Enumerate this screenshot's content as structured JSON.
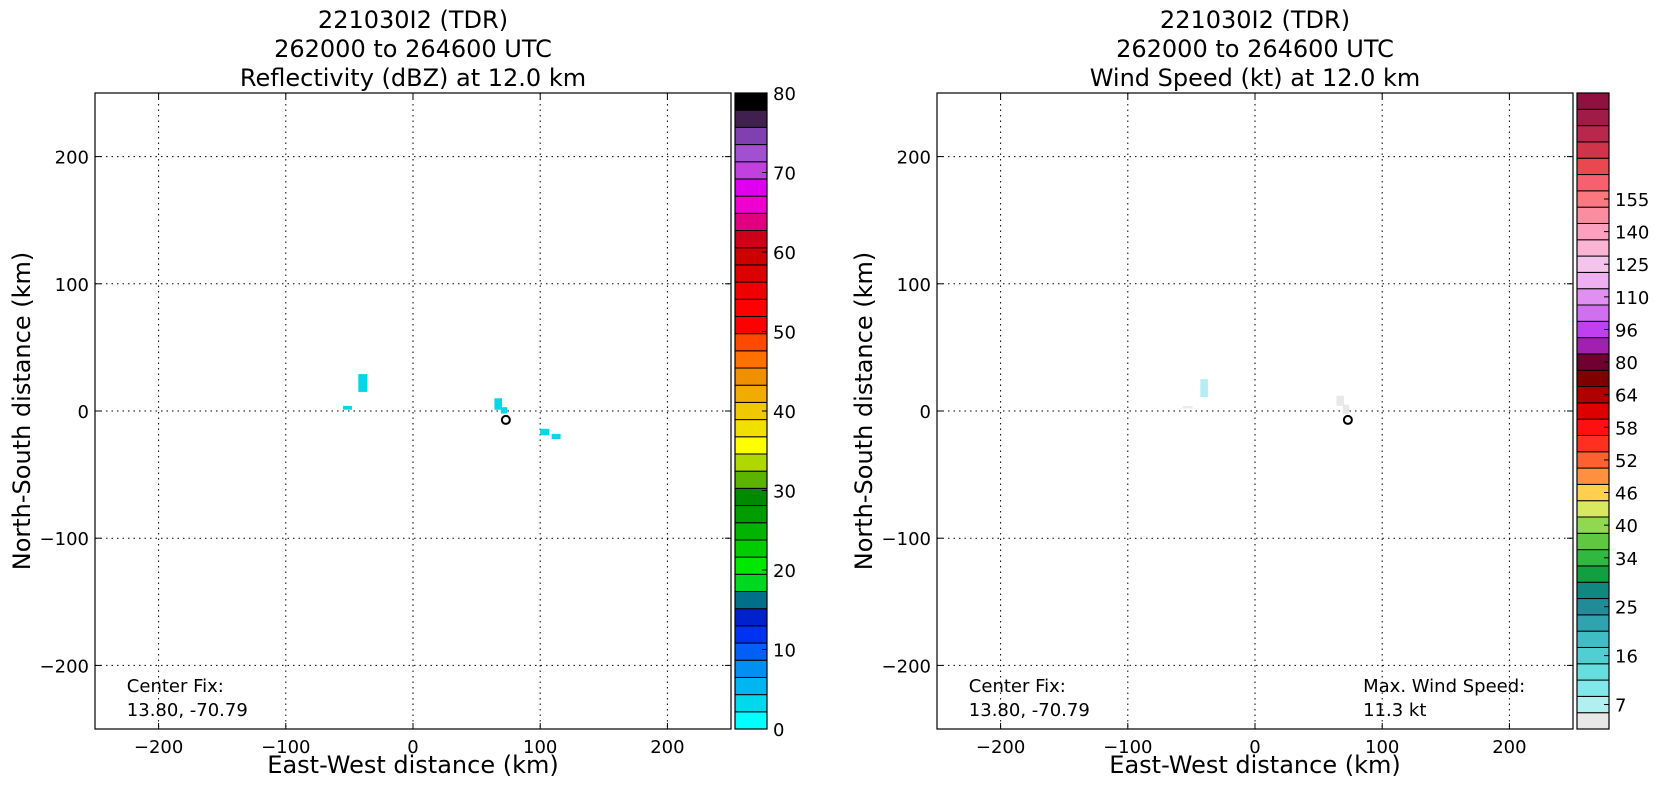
{
  "chart_data": [
    {
      "type": "heatmap",
      "title_lines": [
        "221030I2 (TDR)",
        "262000 to 264600 UTC",
        "Reflectivity (dBZ) at 12.0 km"
      ],
      "xlabel": "East-West distance (km)",
      "ylabel": "North-South distance (km)",
      "xlim": [
        -250,
        250
      ],
      "ylim": [
        -250,
        250
      ],
      "xticks": [
        -200,
        -100,
        0,
        100,
        200
      ],
      "yticks": [
        -200,
        -100,
        0,
        100,
        200
      ],
      "xtick_labels": [
        "−200",
        "−100",
        "0",
        "100",
        "200"
      ],
      "ytick_labels": [
        "−200",
        "−100",
        "0",
        "100",
        "200"
      ],
      "grid": true,
      "annotations": [
        {
          "text": "Center Fix:",
          "x": -225,
          "y": -216
        },
        {
          "text": "13.80, -70.79",
          "x": -225,
          "y": -235
        }
      ],
      "center_marker": {
        "x": 73,
        "y": -7
      },
      "echoes": [
        {
          "x0": -43,
          "x1": -36,
          "y0": 15,
          "y1": 29,
          "color": "#00d8e8"
        },
        {
          "x0": -55,
          "x1": -48,
          "y0": 1,
          "y1": 4,
          "color": "#00d8e8"
        },
        {
          "x0": 64,
          "x1": 70,
          "y0": 1,
          "y1": 10,
          "color": "#00d8e8"
        },
        {
          "x0": 69,
          "x1": 74,
          "y0": -2,
          "y1": 3,
          "color": "#00d8e8"
        },
        {
          "x0": 100,
          "x1": 107,
          "y0": -19,
          "y1": -14,
          "color": "#00d8e8"
        },
        {
          "x0": 109,
          "x1": 116,
          "y0": -22,
          "y1": -18,
          "color": "#00d8e8"
        }
      ],
      "colorbar": {
        "min": 0,
        "max": 80,
        "ticks": [
          0,
          10,
          20,
          30,
          40,
          50,
          60,
          70,
          80
        ],
        "colors": [
          "#00ffff",
          "#00d8ec",
          "#00b6f2",
          "#0090f2",
          "#0060f4",
          "#0032f4",
          "#0022cc",
          "#007088",
          "#00d820",
          "#00e800",
          "#00cc00",
          "#00b400",
          "#009c00",
          "#008a00",
          "#5cb400",
          "#b0d800",
          "#ffff00",
          "#f0e000",
          "#f0c800",
          "#f0ac00",
          "#f09000",
          "#ff7000",
          "#ff4800",
          "#ff0000",
          "#ff0000",
          "#ee0000",
          "#dd0000",
          "#cc0000",
          "#cc0018",
          "#e00080",
          "#f000d0",
          "#e000f0",
          "#c040e0",
          "#a050d0",
          "#8040b0",
          "#40204c",
          "#000000"
        ]
      }
    },
    {
      "type": "heatmap",
      "title_lines": [
        "221030I2 (TDR)",
        "262000 to 264600 UTC",
        "Wind Speed (kt) at 12.0 km"
      ],
      "xlabel": "East-West distance (km)",
      "ylabel": "North-South distance (km)",
      "xlim": [
        -250,
        250
      ],
      "ylim": [
        -250,
        250
      ],
      "xticks": [
        -200,
        -100,
        0,
        100,
        200
      ],
      "yticks": [
        -200,
        -100,
        0,
        100,
        200
      ],
      "xtick_labels": [
        "−200",
        "−100",
        "0",
        "100",
        "200"
      ],
      "ytick_labels": [
        "−200",
        "−100",
        "0",
        "100",
        "200"
      ],
      "grid": true,
      "annotations": [
        {
          "text": "Center Fix:",
          "x": -225,
          "y": -216
        },
        {
          "text": "13.80, -70.79",
          "x": -225,
          "y": -235
        },
        {
          "text": "Max. Wind Speed:",
          "x": 85,
          "y": -216
        },
        {
          "text": "11.3 kt",
          "x": 85,
          "y": -235
        }
      ],
      "center_marker": {
        "x": 73,
        "y": -7
      },
      "echoes": [
        {
          "x0": -43,
          "x1": -37,
          "y0": 11,
          "y1": 25,
          "color": "#b4eef4"
        },
        {
          "x0": -57,
          "x1": -49,
          "y0": 2,
          "y1": 4,
          "color": "#e8eeee"
        },
        {
          "x0": 64,
          "x1": 70,
          "y0": 4,
          "y1": 12,
          "color": "#e8e8e8"
        },
        {
          "x0": 69,
          "x1": 74,
          "y0": -2,
          "y1": 5,
          "color": "#e8e8e8"
        }
      ],
      "colorbar": {
        "tick_labels": [
          "7",
          "16",
          "25",
          "34",
          "40",
          "46",
          "52",
          "58",
          "64",
          "80",
          "96",
          "110",
          "125",
          "140",
          "155"
        ],
        "tick_levels": [
          1,
          4,
          7,
          10,
          12,
          14,
          16,
          18,
          20,
          22,
          24,
          26,
          28,
          30,
          32
        ],
        "colors": [
          "#e8e8e8",
          "#b0f0f0",
          "#80e8ea",
          "#66dede",
          "#50ced2",
          "#40bcc4",
          "#30a4ae",
          "#208c98",
          "#108880",
          "#10a040",
          "#30b840",
          "#60c840",
          "#90d850",
          "#d8e860",
          "#ffd050",
          "#ff9040",
          "#ff6030",
          "#ff3020",
          "#ff1010",
          "#dd0000",
          "#b00000",
          "#800000",
          "#700030",
          "#a020b0",
          "#c040f0",
          "#d070f0",
          "#e090f0",
          "#eeb0f0",
          "#f4c4ec",
          "#fab4d4",
          "#fca0c0",
          "#fc8ca0",
          "#fc7880",
          "#f86070",
          "#e84850",
          "#d03448",
          "#b8284c",
          "#a01c48",
          "#901040"
        ]
      }
    }
  ]
}
